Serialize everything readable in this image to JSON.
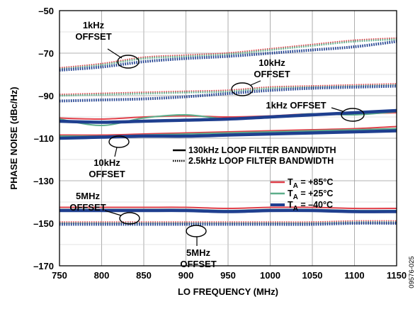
{
  "chart_data": {
    "type": "line",
    "xlabel": "LO FREQUENCY (MHz)",
    "ylabel": "PHASE NOISE (dBc/Hz)",
    "xlim": [
      750,
      1150
    ],
    "ylim": [
      -170,
      -50
    ],
    "x_ticks": [
      750,
      800,
      850,
      900,
      950,
      1000,
      1050,
      1100,
      1150
    ],
    "y_ticks": [
      -50,
      -70,
      -90,
      -110,
      -130,
      -150,
      -170
    ],
    "x_tick_labels": [
      "750",
      "800",
      "850",
      "900",
      "950",
      "1000",
      "1050",
      "1100",
      "1150"
    ],
    "y_tick_labels": [
      "–50",
      "–70",
      "–90",
      "–110",
      "–130",
      "–150",
      "–170"
    ],
    "grid": true,
    "legend_position": "center-right",
    "legend": {
      "line_styles": [
        {
          "style": "solid",
          "label": "130kHz LOOP FILTER BANDWIDTH"
        },
        {
          "style": "dotted",
          "label": "2.5kHz LOOP FILTER BANDWIDTH"
        }
      ],
      "temperatures": [
        {
          "prefix": "T",
          "sub": "A",
          "value": " = +85°C",
          "color": "#e0404a"
        },
        {
          "prefix": "T",
          "sub": "A",
          "value": " = +25°C",
          "color": "#5cae8a"
        },
        {
          "prefix": "T",
          "sub": "A",
          "value": " = –40°C",
          "color": "#1f3f8f"
        }
      ]
    },
    "annotations": [
      {
        "id": "ann-1khz-dotted",
        "lines": [
          "1kHz",
          "OFFSET"
        ]
      },
      {
        "id": "ann-10khz-dotted",
        "lines": [
          "10kHz",
          "OFFSET"
        ]
      },
      {
        "id": "ann-1khz-solid",
        "lines": [
          "1kHz OFFSET"
        ]
      },
      {
        "id": "ann-10khz-solid",
        "lines": [
          "10kHz",
          "OFFSET"
        ]
      },
      {
        "id": "ann-5mhz-solid",
        "lines": [
          "5MHz",
          "OFFSET"
        ]
      },
      {
        "id": "ann-5mhz-dotted",
        "lines": [
          "5MHz",
          "OFFSET"
        ]
      }
    ],
    "figure_code": "09576-025",
    "x": [
      750,
      800,
      850,
      900,
      950,
      1000,
      1050,
      1100,
      1150
    ],
    "series": [
      {
        "group": "1kHz offset, 2.5kHz loop filter",
        "temp": "+85°C",
        "style": "dotted",
        "color": "#e0404a",
        "values": [
          -77,
          -75,
          -72,
          -71,
          -70,
          -68,
          -66,
          -64,
          -63
        ]
      },
      {
        "group": "1kHz offset, 2.5kHz loop filter",
        "temp": "+25°C",
        "style": "dotted",
        "color": "#5cae8a",
        "values": [
          -77.5,
          -75.5,
          -72.5,
          -71.5,
          -70.5,
          -68.5,
          -66.5,
          -64.5,
          -63.5
        ]
      },
      {
        "group": "1kHz offset, 2.5kHz loop filter",
        "temp": "–40°C",
        "style": "dotted",
        "color": "#1f3f8f",
        "values": [
          -78,
          -76.5,
          -74,
          -72.5,
          -71.5,
          -70,
          -68.5,
          -67,
          -64.5
        ]
      },
      {
        "group": "10kHz offset, 2.5kHz loop filter",
        "temp": "+85°C",
        "style": "dotted",
        "color": "#e0404a",
        "values": [
          -89.5,
          -89,
          -88.5,
          -88,
          -87.5,
          -86,
          -85.5,
          -85,
          -84.5
        ]
      },
      {
        "group": "10kHz offset, 2.5kHz loop filter",
        "temp": "+25°C",
        "style": "dotted",
        "color": "#5cae8a",
        "values": [
          -90,
          -89.5,
          -89,
          -88.5,
          -88,
          -86.5,
          -86,
          -85.5,
          -85
        ]
      },
      {
        "group": "10kHz offset, 2.5kHz loop filter",
        "temp": "–40°C",
        "style": "dotted",
        "color": "#1f3f8f",
        "values": [
          -92.5,
          -92,
          -91.5,
          -90.5,
          -89,
          -87.5,
          -86.5,
          -86,
          -85.5
        ]
      },
      {
        "group": "1kHz offset, 130kHz loop filter",
        "temp": "+85°C",
        "style": "solid",
        "color": "#e0404a",
        "values": [
          -100.5,
          -101,
          -100,
          -99.5,
          -100,
          -99.5,
          -98.5,
          -98.5,
          -98
        ]
      },
      {
        "group": "1kHz offset, 130kHz loop filter",
        "temp": "+25°C",
        "style": "solid",
        "color": "#5cae8a",
        "values": [
          -101,
          -104,
          -100.5,
          -99,
          -101,
          -100,
          -98.5,
          -99,
          -97.5
        ]
      },
      {
        "group": "1kHz offset, 130kHz loop filter",
        "temp": "–40°C",
        "style": "solid",
        "color": "#1f3f8f",
        "values": [
          -102,
          -102.5,
          -102,
          -101.5,
          -101,
          -100,
          -99,
          -98,
          -97
        ]
      },
      {
        "group": "10kHz offset, 130kHz loop filter",
        "temp": "+85°C",
        "style": "solid",
        "color": "#e0404a",
        "values": [
          -108.5,
          -108.5,
          -108,
          -107.5,
          -107,
          -106.5,
          -106,
          -105.5,
          -104.5
        ]
      },
      {
        "group": "10kHz offset, 130kHz loop filter",
        "temp": "+25°C",
        "style": "solid",
        "color": "#5cae8a",
        "values": [
          -109,
          -109,
          -108.5,
          -108,
          -107.5,
          -107,
          -106.5,
          -106,
          -105.5
        ]
      },
      {
        "group": "10kHz offset, 130kHz loop filter",
        "temp": "–40°C",
        "style": "solid",
        "color": "#1f3f8f",
        "values": [
          -110,
          -109.5,
          -109,
          -109,
          -108.5,
          -108,
          -107.5,
          -107,
          -106.5
        ]
      },
      {
        "group": "5MHz offset, 130kHz loop filter",
        "temp": "+85°C",
        "style": "solid",
        "color": "#e0404a",
        "values": [
          -142.5,
          -142.5,
          -142.5,
          -142.5,
          -143,
          -142.5,
          -142.5,
          -143,
          -143
        ]
      },
      {
        "group": "5MHz offset, 130kHz loop filter",
        "temp": "+25°C",
        "style": "solid",
        "color": "#5cae8a",
        "values": [
          -143.5,
          -143.5,
          -143.5,
          -143.5,
          -144,
          -143.5,
          -143.5,
          -144,
          -144
        ]
      },
      {
        "group": "5MHz offset, 130kHz loop filter",
        "temp": "–40°C",
        "style": "solid",
        "color": "#1f3f8f",
        "values": [
          -144,
          -144,
          -144,
          -144,
          -144.5,
          -144,
          -144,
          -144.5,
          -144.5
        ]
      },
      {
        "group": "5MHz offset, 2.5kHz loop filter",
        "temp": "+85°C",
        "style": "dotted",
        "color": "#e0404a",
        "values": [
          -149.5,
          -149.5,
          -149.5,
          -149.5,
          -149.5,
          -149.5,
          -149.5,
          -149,
          -149
        ]
      },
      {
        "group": "5MHz offset, 2.5kHz loop filter",
        "temp": "+25°C",
        "style": "dotted",
        "color": "#5cae8a",
        "values": [
          -150,
          -150,
          -150,
          -150,
          -150,
          -150,
          -150,
          -149.5,
          -149.5
        ]
      },
      {
        "group": "5MHz offset, 2.5kHz loop filter",
        "temp": "–40°C",
        "style": "dotted",
        "color": "#1f3f8f",
        "values": [
          -150.5,
          -150.5,
          -150.5,
          -150.5,
          -150.5,
          -150.5,
          -150.5,
          -150,
          -150
        ]
      }
    ]
  }
}
